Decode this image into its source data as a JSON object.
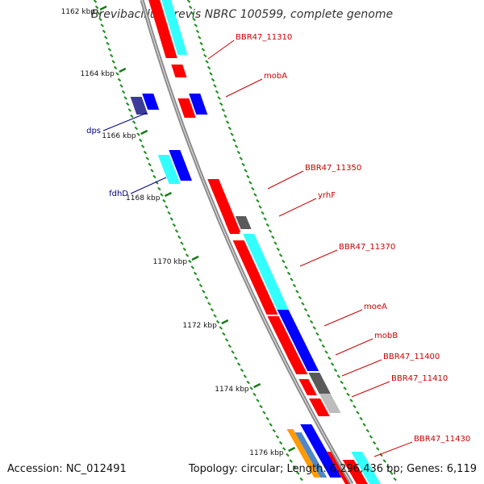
{
  "title": "Brevibacillus brevis NBRC 100599, complete genome",
  "accession": "Accession: NC_012491",
  "summary": "Topology: circular; Length: 6,296,436 bp; Genes: 6,119",
  "colors": {
    "backbone": "#8c8c8c",
    "tick_minor": "#1e8f1e",
    "tick_major": "#1a7a1a",
    "forward_label": "#cc0000",
    "reverse_label": "#00008b"
  },
  "kbp_ticks": [
    "1162 kbp",
    "1164 kbp",
    "1166 kbp",
    "1168 kbp",
    "1170 kbp",
    "1172 kbp",
    "1174 kbp",
    "1176 kbp"
  ],
  "gene_labels": {
    "outer": [
      "BBR47_11310",
      "mobA",
      "BBR47_11350",
      "yrhF",
      "BBR47_11370",
      "moeA",
      "mobB",
      "BBR47_11400",
      "BBR47_11410",
      "BBR47_11430"
    ],
    "inner": [
      "dps",
      "fdhD"
    ]
  },
  "gene_colors": [
    "red",
    "cyan",
    "blue",
    "dark gray",
    "light gray",
    "slate blue",
    "orange",
    "steel blue"
  ]
}
